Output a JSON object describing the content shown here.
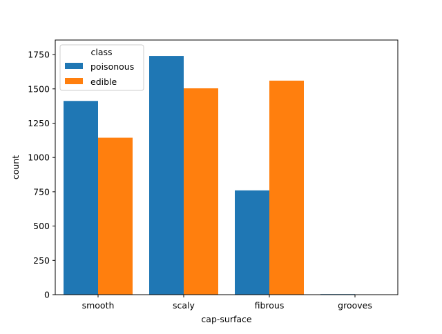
{
  "chart_data": {
    "type": "bar",
    "title": "",
    "xlabel": "cap-surface",
    "ylabel": "count",
    "categories": [
      "smooth",
      "scaly",
      "fibrous",
      "grooves"
    ],
    "series": [
      {
        "name": "poisonous",
        "values": [
          1412,
          1740,
          760,
          4
        ],
        "color": "#1f77b4"
      },
      {
        "name": "edible",
        "values": [
          1144,
          1504,
          1560,
          0
        ],
        "color": "#ff7f0e"
      }
    ],
    "ylim": [
      0,
      1856
    ],
    "yticks": [
      0,
      250,
      500,
      750,
      1000,
      1250,
      1500,
      1750
    ],
    "grid": false,
    "legend": {
      "title": "class",
      "placement": "top-left"
    }
  }
}
